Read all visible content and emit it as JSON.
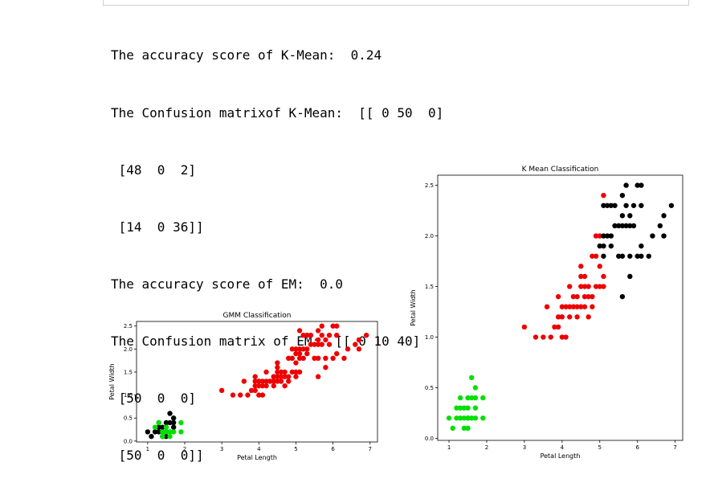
{
  "output": {
    "lines": [
      "The accuracy score of K-Mean:  0.24",
      "The Confusion matrixof K-Mean:  [[ 0 50  0]",
      " [48  0  2]",
      " [14  0 36]]",
      "The accuracy score of EM:  0.0",
      "The Confusion matrix of EM:  [[ 0 10 40]",
      " [50  0  0]",
      " [50  0  0]]"
    ]
  },
  "chart_data": [
    {
      "type": "scatter",
      "title": "GMM Classification",
      "xlabel": "Petal Length",
      "ylabel": "Petal Width",
      "xlim": [
        0.7,
        7.2
      ],
      "ylim": [
        -0.02,
        2.6
      ],
      "xticks": [
        1,
        2,
        3,
        4,
        5,
        6,
        7
      ],
      "yticks": [
        0.0,
        0.5,
        1.0,
        1.5,
        2.0,
        2.5
      ],
      "series": [
        {
          "color": "#000000",
          "points": [
            [
              1.0,
              0.2
            ],
            [
              1.1,
              0.1
            ],
            [
              1.2,
              0.2
            ],
            [
              1.3,
              0.2
            ],
            [
              1.3,
              0.3
            ],
            [
              1.4,
              0.2
            ],
            [
              1.4,
              0.3
            ],
            [
              1.4,
              0.1
            ],
            [
              1.5,
              0.2
            ],
            [
              1.5,
              0.4
            ],
            [
              1.5,
              0.3
            ],
            [
              1.6,
              0.2
            ],
            [
              1.6,
              0.4
            ],
            [
              1.7,
              0.4
            ],
            [
              1.7,
              0.5
            ],
            [
              1.6,
              0.6
            ],
            [
              1.5,
              0.1
            ],
            [
              1.3,
              0.4
            ],
            [
              1.7,
              0.3
            ]
          ]
        },
        {
          "color": "#00e000",
          "points": [
            [
              1.3,
              0.4
            ],
            [
              1.4,
              0.2
            ],
            [
              1.5,
              0.2
            ],
            [
              1.4,
              0.1
            ],
            [
              1.5,
              0.3
            ],
            [
              1.6,
              0.2
            ],
            [
              1.7,
              0.2
            ],
            [
              1.9,
              0.2
            ],
            [
              1.9,
              0.4
            ],
            [
              1.6,
              0.1
            ],
            [
              1.2,
              0.3
            ]
          ]
        },
        {
          "color": "#ee0000",
          "points": [
            [
              3.0,
              1.1
            ],
            [
              3.3,
              1.0
            ],
            [
              3.5,
              1.0
            ],
            [
              3.6,
              1.3
            ],
            [
              3.7,
              1.0
            ],
            [
              3.8,
              1.1
            ],
            [
              3.9,
              1.1
            ],
            [
              3.9,
              1.2
            ],
            [
              3.9,
              1.4
            ],
            [
              4.0,
              1.0
            ],
            [
              4.0,
              1.2
            ],
            [
              4.0,
              1.3
            ],
            [
              4.1,
              1.0
            ],
            [
              4.1,
              1.3
            ],
            [
              4.2,
              1.2
            ],
            [
              4.2,
              1.3
            ],
            [
              4.2,
              1.5
            ],
            [
              4.3,
              1.3
            ],
            [
              4.4,
              1.2
            ],
            [
              4.4,
              1.3
            ],
            [
              4.4,
              1.4
            ],
            [
              4.5,
              1.3
            ],
            [
              4.5,
              1.5
            ],
            [
              4.5,
              1.6
            ],
            [
              4.5,
              1.7
            ],
            [
              4.6,
              1.3
            ],
            [
              4.6,
              1.4
            ],
            [
              4.6,
              1.5
            ],
            [
              4.7,
              1.2
            ],
            [
              4.7,
              1.4
            ],
            [
              4.7,
              1.5
            ],
            [
              4.8,
              1.4
            ],
            [
              4.8,
              1.8
            ],
            [
              4.9,
              1.5
            ],
            [
              4.9,
              1.8
            ],
            [
              5.0,
              1.5
            ],
            [
              5.0,
              1.7
            ],
            [
              5.0,
              2.0
            ],
            [
              5.1,
              1.5
            ],
            [
              5.1,
              1.8
            ],
            [
              5.1,
              1.9
            ],
            [
              5.1,
              2.0
            ],
            [
              5.1,
              2.4
            ],
            [
              5.2,
              2.0
            ],
            [
              5.2,
              2.3
            ],
            [
              5.3,
              1.9
            ],
            [
              5.3,
              2.3
            ],
            [
              5.4,
              2.1
            ],
            [
              5.4,
              2.3
            ],
            [
              5.5,
              1.8
            ],
            [
              5.5,
              2.1
            ],
            [
              5.6,
              1.4
            ],
            [
              5.6,
              1.8
            ],
            [
              5.6,
              2.1
            ],
            [
              5.6,
              2.2
            ],
            [
              5.6,
              2.4
            ],
            [
              5.7,
              2.1
            ],
            [
              5.7,
              2.3
            ],
            [
              5.7,
              2.5
            ],
            [
              5.8,
              1.6
            ],
            [
              5.8,
              1.8
            ],
            [
              5.8,
              2.2
            ],
            [
              5.9,
              2.1
            ],
            [
              5.9,
              2.3
            ],
            [
              6.0,
              1.8
            ],
            [
              6.0,
              2.5
            ],
            [
              6.1,
              1.9
            ],
            [
              6.1,
              2.3
            ],
            [
              6.1,
              2.5
            ],
            [
              6.3,
              1.8
            ],
            [
              6.4,
              2.0
            ],
            [
              6.6,
              2.1
            ],
            [
              6.7,
              2.0
            ],
            [
              6.7,
              2.2
            ],
            [
              6.9,
              2.3
            ],
            [
              5.0,
              1.9
            ],
            [
              4.9,
              2.0
            ],
            [
              5.3,
              2.0
            ],
            [
              4.0,
              1.3
            ],
            [
              4.3,
              1.3
            ],
            [
              4.4,
              1.3
            ],
            [
              4.8,
              1.3
            ],
            [
              5.0,
              1.4
            ],
            [
              5.2,
              1.8
            ],
            [
              4.5,
              1.4
            ],
            [
              4.6,
              1.3
            ],
            [
              4.1,
              1.2
            ],
            [
              3.9,
              1.3
            ],
            [
              4.4,
              1.4
            ]
          ]
        }
      ]
    },
    {
      "type": "scatter",
      "title": "K Mean Classification",
      "xlabel": "Petal Length",
      "ylabel": "Petal Width",
      "xlim": [
        0.7,
        7.2
      ],
      "ylim": [
        -0.02,
        2.6
      ],
      "xticks": [
        1,
        2,
        3,
        4,
        5,
        6,
        7
      ],
      "yticks": [
        0.0,
        0.5,
        1.0,
        1.5,
        2.0,
        2.5
      ],
      "series": [
        {
          "color": "#00e000",
          "points": [
            [
              1.0,
              0.2
            ],
            [
              1.1,
              0.1
            ],
            [
              1.2,
              0.2
            ],
            [
              1.3,
              0.2
            ],
            [
              1.3,
              0.3
            ],
            [
              1.3,
              0.4
            ],
            [
              1.4,
              0.1
            ],
            [
              1.4,
              0.2
            ],
            [
              1.4,
              0.3
            ],
            [
              1.5,
              0.1
            ],
            [
              1.5,
              0.2
            ],
            [
              1.5,
              0.3
            ],
            [
              1.5,
              0.4
            ],
            [
              1.6,
              0.2
            ],
            [
              1.6,
              0.4
            ],
            [
              1.6,
              0.6
            ],
            [
              1.7,
              0.2
            ],
            [
              1.7,
              0.3
            ],
            [
              1.7,
              0.4
            ],
            [
              1.7,
              0.5
            ],
            [
              1.9,
              0.2
            ],
            [
              1.9,
              0.4
            ],
            [
              1.2,
              0.3
            ],
            [
              1.5,
              0.2
            ],
            [
              1.6,
              0.2
            ]
          ]
        },
        {
          "color": "#ee0000",
          "points": [
            [
              3.0,
              1.1
            ],
            [
              3.3,
              1.0
            ],
            [
              3.5,
              1.0
            ],
            [
              3.6,
              1.3
            ],
            [
              3.7,
              1.0
            ],
            [
              3.8,
              1.1
            ],
            [
              3.9,
              1.1
            ],
            [
              3.9,
              1.2
            ],
            [
              3.9,
              1.4
            ],
            [
              4.0,
              1.0
            ],
            [
              4.0,
              1.2
            ],
            [
              4.0,
              1.3
            ],
            [
              4.1,
              1.0
            ],
            [
              4.1,
              1.3
            ],
            [
              4.2,
              1.2
            ],
            [
              4.2,
              1.3
            ],
            [
              4.2,
              1.5
            ],
            [
              4.3,
              1.3
            ],
            [
              4.4,
              1.2
            ],
            [
              4.4,
              1.3
            ],
            [
              4.4,
              1.4
            ],
            [
              4.5,
              1.3
            ],
            [
              4.5,
              1.5
            ],
            [
              4.5,
              1.6
            ],
            [
              4.5,
              1.7
            ],
            [
              4.6,
              1.3
            ],
            [
              4.6,
              1.4
            ],
            [
              4.6,
              1.5
            ],
            [
              4.7,
              1.2
            ],
            [
              4.7,
              1.4
            ],
            [
              4.7,
              1.5
            ],
            [
              4.8,
              1.4
            ],
            [
              4.8,
              1.8
            ],
            [
              4.9,
              1.5
            ],
            [
              4.9,
              2.0
            ],
            [
              5.0,
              1.5
            ],
            [
              5.0,
              1.7
            ],
            [
              5.0,
              2.0
            ],
            [
              5.1,
              1.5
            ],
            [
              5.1,
              1.6
            ],
            [
              5.1,
              2.4
            ],
            [
              4.8,
              1.3
            ],
            [
              4.9,
              1.8
            ],
            [
              4.6,
              1.6
            ],
            [
              4.3,
              1.4
            ]
          ]
        },
        {
          "color": "#000000",
          "points": [
            [
              5.1,
              1.8
            ],
            [
              5.1,
              1.9
            ],
            [
              5.1,
              2.0
            ],
            [
              5.1,
              2.3
            ],
            [
              5.2,
              2.0
            ],
            [
              5.2,
              2.3
            ],
            [
              5.3,
              1.9
            ],
            [
              5.3,
              2.3
            ],
            [
              5.4,
              2.1
            ],
            [
              5.4,
              2.3
            ],
            [
              5.5,
              1.8
            ],
            [
              5.5,
              2.1
            ],
            [
              5.6,
              1.4
            ],
            [
              5.6,
              1.8
            ],
            [
              5.6,
              2.1
            ],
            [
              5.6,
              2.2
            ],
            [
              5.6,
              2.4
            ],
            [
              5.7,
              2.1
            ],
            [
              5.7,
              2.3
            ],
            [
              5.7,
              2.5
            ],
            [
              5.8,
              1.6
            ],
            [
              5.8,
              1.8
            ],
            [
              5.8,
              2.2
            ],
            [
              5.9,
              2.1
            ],
            [
              5.9,
              2.3
            ],
            [
              6.0,
              1.8
            ],
            [
              6.0,
              2.5
            ],
            [
              6.1,
              1.9
            ],
            [
              6.1,
              2.3
            ],
            [
              6.1,
              2.5
            ],
            [
              6.3,
              1.8
            ],
            [
              6.4,
              2.0
            ],
            [
              6.6,
              2.1
            ],
            [
              6.7,
              2.0
            ],
            [
              6.7,
              2.2
            ],
            [
              6.9,
              2.3
            ],
            [
              5.3,
              2.0
            ],
            [
              5.0,
              1.9
            ],
            [
              6.1,
              1.8
            ],
            [
              5.8,
              2.1
            ]
          ]
        }
      ]
    }
  ]
}
